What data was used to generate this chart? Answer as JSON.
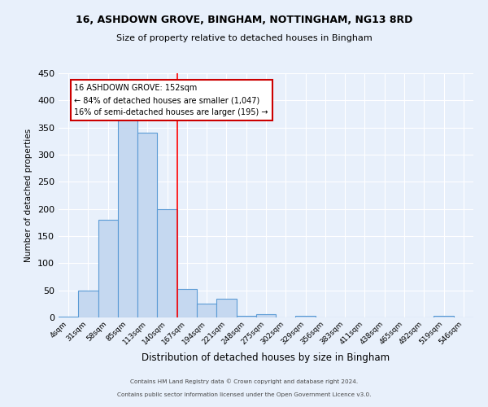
{
  "title1": "16, ASHDOWN GROVE, BINGHAM, NOTTINGHAM, NG13 8RD",
  "title2": "Size of property relative to detached houses in Bingham",
  "xlabel": "Distribution of detached houses by size in Bingham",
  "ylabel": "Number of detached properties",
  "footer1": "Contains HM Land Registry data © Crown copyright and database right 2024.",
  "footer2": "Contains public sector information licensed under the Open Government Licence v3.0.",
  "bin_labels": [
    "4sqm",
    "31sqm",
    "58sqm",
    "85sqm",
    "113sqm",
    "140sqm",
    "167sqm",
    "194sqm",
    "221sqm",
    "248sqm",
    "275sqm",
    "302sqm",
    "329sqm",
    "356sqm",
    "383sqm",
    "411sqm",
    "438sqm",
    "465sqm",
    "492sqm",
    "519sqm",
    "546sqm"
  ],
  "bin_values": [
    2,
    50,
    180,
    370,
    340,
    200,
    53,
    26,
    34,
    3,
    6,
    0,
    3,
    0,
    0,
    0,
    0,
    0,
    0,
    3,
    0
  ],
  "bar_color": "#c5d8f0",
  "bar_edge_color": "#5b9bd5",
  "background_color": "#e8f0fb",
  "grid_color": "#ffffff",
  "red_line_x": 5.5,
  "annotation_title": "16 ASHDOWN GROVE: 152sqm",
  "annotation_line1": "← 84% of detached houses are smaller (1,047)",
  "annotation_line2": "16% of semi-detached houses are larger (195) →",
  "annotation_box_color": "#ffffff",
  "annotation_box_edge": "#cc0000",
  "ylim": [
    0,
    450
  ],
  "xlim_left": -0.5,
  "xlim_right": 20.5,
  "figsize": [
    6.0,
    5.0
  ],
  "dpi": 100
}
